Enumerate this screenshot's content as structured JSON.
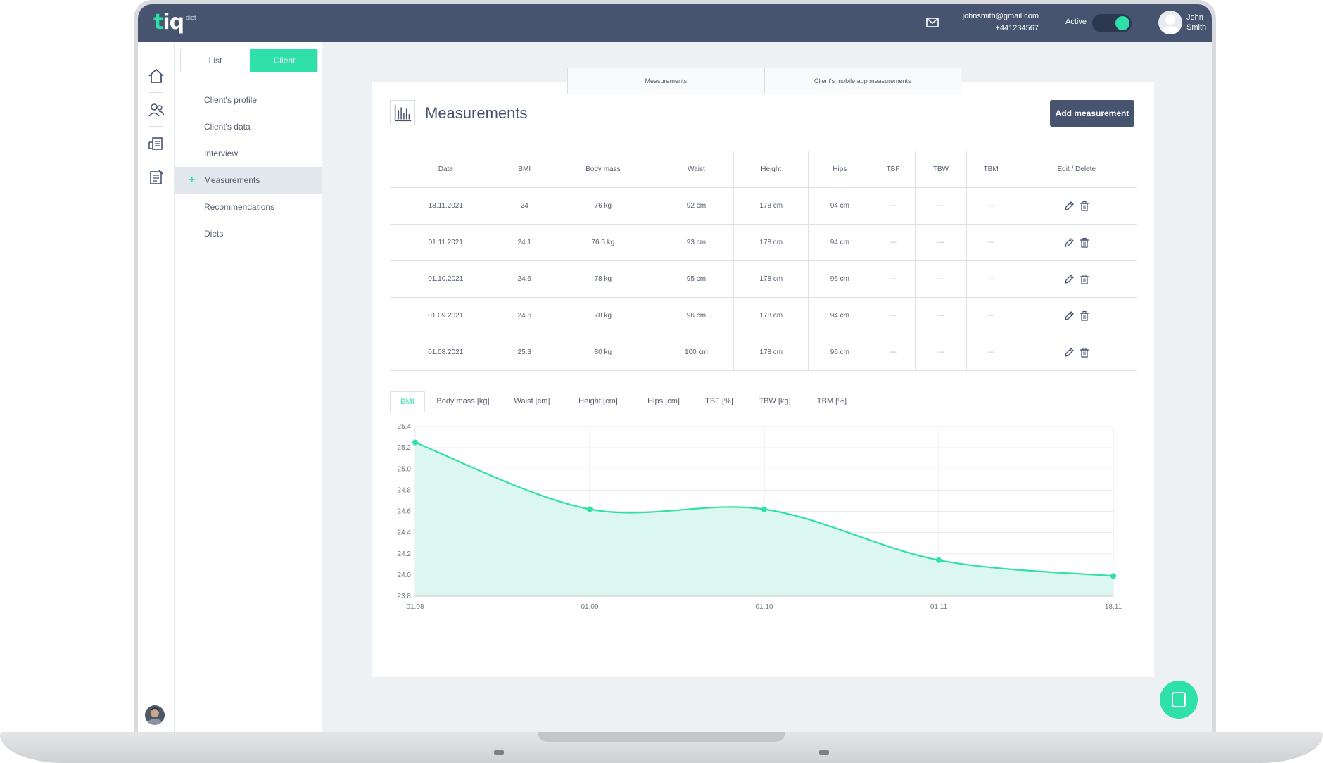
{
  "brand": {
    "logo_t": "t",
    "logo_rest": "iq",
    "logo_sub": "diet"
  },
  "header": {
    "email": "johnsmith@gmail.com",
    "phone": "+441234567",
    "active_label": "Active",
    "user_first": "John",
    "user_last": "Smith",
    "active_on": true
  },
  "rail": {
    "icons": [
      "home-icon",
      "clients-icon",
      "documents-icon",
      "notes-icon"
    ]
  },
  "sidemenu": {
    "list_label": "List",
    "client_label": "Client",
    "items": [
      "Client's profile",
      "Client's data",
      "Interview",
      "Measurements",
      "Recommendations",
      "Diets"
    ],
    "active_index": 3,
    "active_marker": "+"
  },
  "top_tabs": [
    "Measurements",
    "Client's mobile app measurements"
  ],
  "page": {
    "title": "Measurements",
    "add_button": "Add measurement"
  },
  "table": {
    "headers": [
      "Date",
      "BMI",
      "Body mass",
      "Waist",
      "Height",
      "Hips",
      "TBF",
      "TBW",
      "TBM",
      "Edit / Delete"
    ],
    "rows": [
      [
        "18.11.2021",
        "24",
        "76 kg",
        "92 cm",
        "178 cm",
        "94 cm",
        "---",
        "---",
        "---"
      ],
      [
        "01.11.2021",
        "24.1",
        "76.5 kg",
        "93 cm",
        "178 cm",
        "94 cm",
        "---",
        "---",
        "---"
      ],
      [
        "01.10.2021",
        "24.6",
        "78 kg",
        "95 cm",
        "178 cm",
        "96 cm",
        "---",
        "---",
        "---"
      ],
      [
        "01.09.2021",
        "24.6",
        "78 kg",
        "96 cm",
        "178 cm",
        "94 cm",
        "---",
        "---",
        "---"
      ],
      [
        "01.08.2021",
        "25.3",
        "80 kg",
        "100 cm",
        "178 cm",
        "96 cm",
        "---",
        "---",
        "---"
      ]
    ]
  },
  "chart_tabs": [
    "BMI",
    "Body mass [kg]",
    "Waist [cm]",
    "Height [cm]",
    "Hips [cm]",
    "TBF [%]",
    "TBW [kg]",
    "TBM [%]"
  ],
  "chart_tab_selected": 0,
  "colors": {
    "accent": "#2fe0a8",
    "navy": "#47546f",
    "fill": "#dcf7ef"
  },
  "chart_data": {
    "type": "area",
    "x": [
      "01.08",
      "01.09",
      "01.10",
      "01.11",
      "18.11"
    ],
    "values": [
      25.25,
      24.62,
      24.62,
      24.14,
      23.99
    ],
    "ylim": [
      23.8,
      25.4
    ],
    "yticks": [
      "25.4",
      "25.2",
      "25.0",
      "24.8",
      "24.6",
      "24.4",
      "24.2",
      "24.0",
      "23.8"
    ],
    "grid": true,
    "smooth": true
  }
}
